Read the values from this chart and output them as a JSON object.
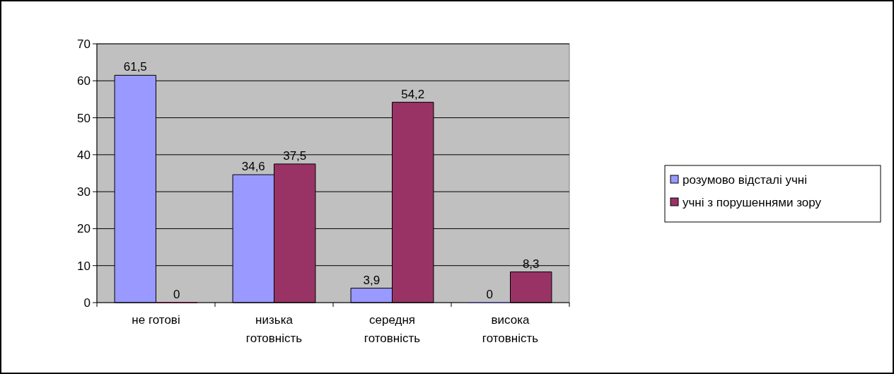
{
  "chart_data": {
    "type": "bar",
    "categories": [
      "не готові",
      "низька готовність",
      "середня готовність",
      "висока готовність"
    ],
    "series": [
      {
        "name": "розумово відсталі учні",
        "color": "#9999ff",
        "values": [
          61.5,
          34.6,
          3.9,
          0
        ],
        "value_labels": [
          "61,5",
          "34,6",
          "3,9",
          "0"
        ]
      },
      {
        "name": "учні з порушеннями зору",
        "color": "#993366",
        "values": [
          0,
          37.5,
          54.2,
          8.3
        ],
        "value_labels": [
          "0",
          "37,5",
          "54,2",
          "8,3"
        ]
      }
    ],
    "ylim": [
      0,
      70
    ],
    "yticks": [
      0,
      10,
      20,
      30,
      40,
      50,
      60,
      70
    ],
    "grid": "y",
    "legend": "right"
  }
}
